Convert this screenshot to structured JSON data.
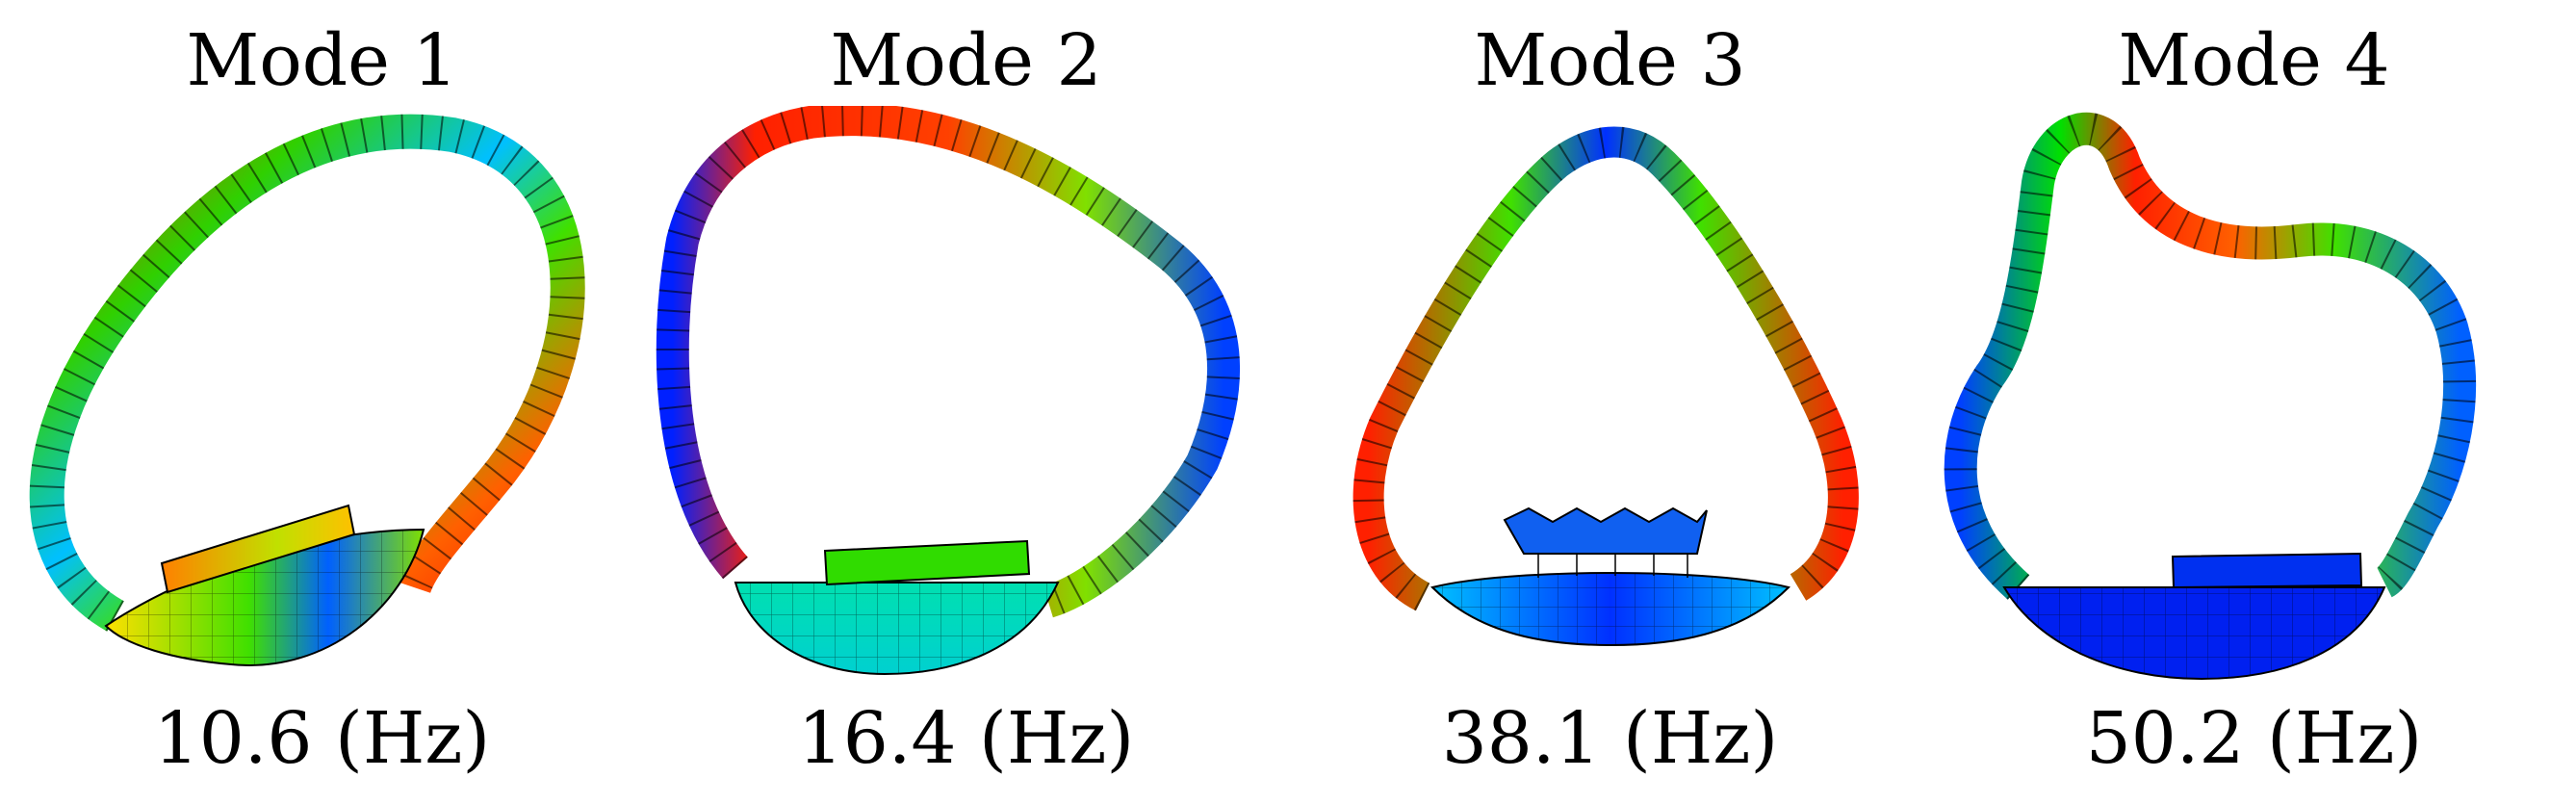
{
  "modes": [
    {
      "title": "Mode 1",
      "frequency": "10.6 (Hz)"
    },
    {
      "title": "Mode 2",
      "frequency": "16.4 (Hz)"
    },
    {
      "title": "Mode 3",
      "frequency": "38.1 (Hz)"
    },
    {
      "title": "Mode 4",
      "frequency": "50.2 (Hz)"
    }
  ],
  "colormap": [
    "#0000ff",
    "#00a0ff",
    "#00e0c0",
    "#00e000",
    "#c0f000",
    "#ffe000",
    "#ff8000",
    "#ff0000"
  ]
}
